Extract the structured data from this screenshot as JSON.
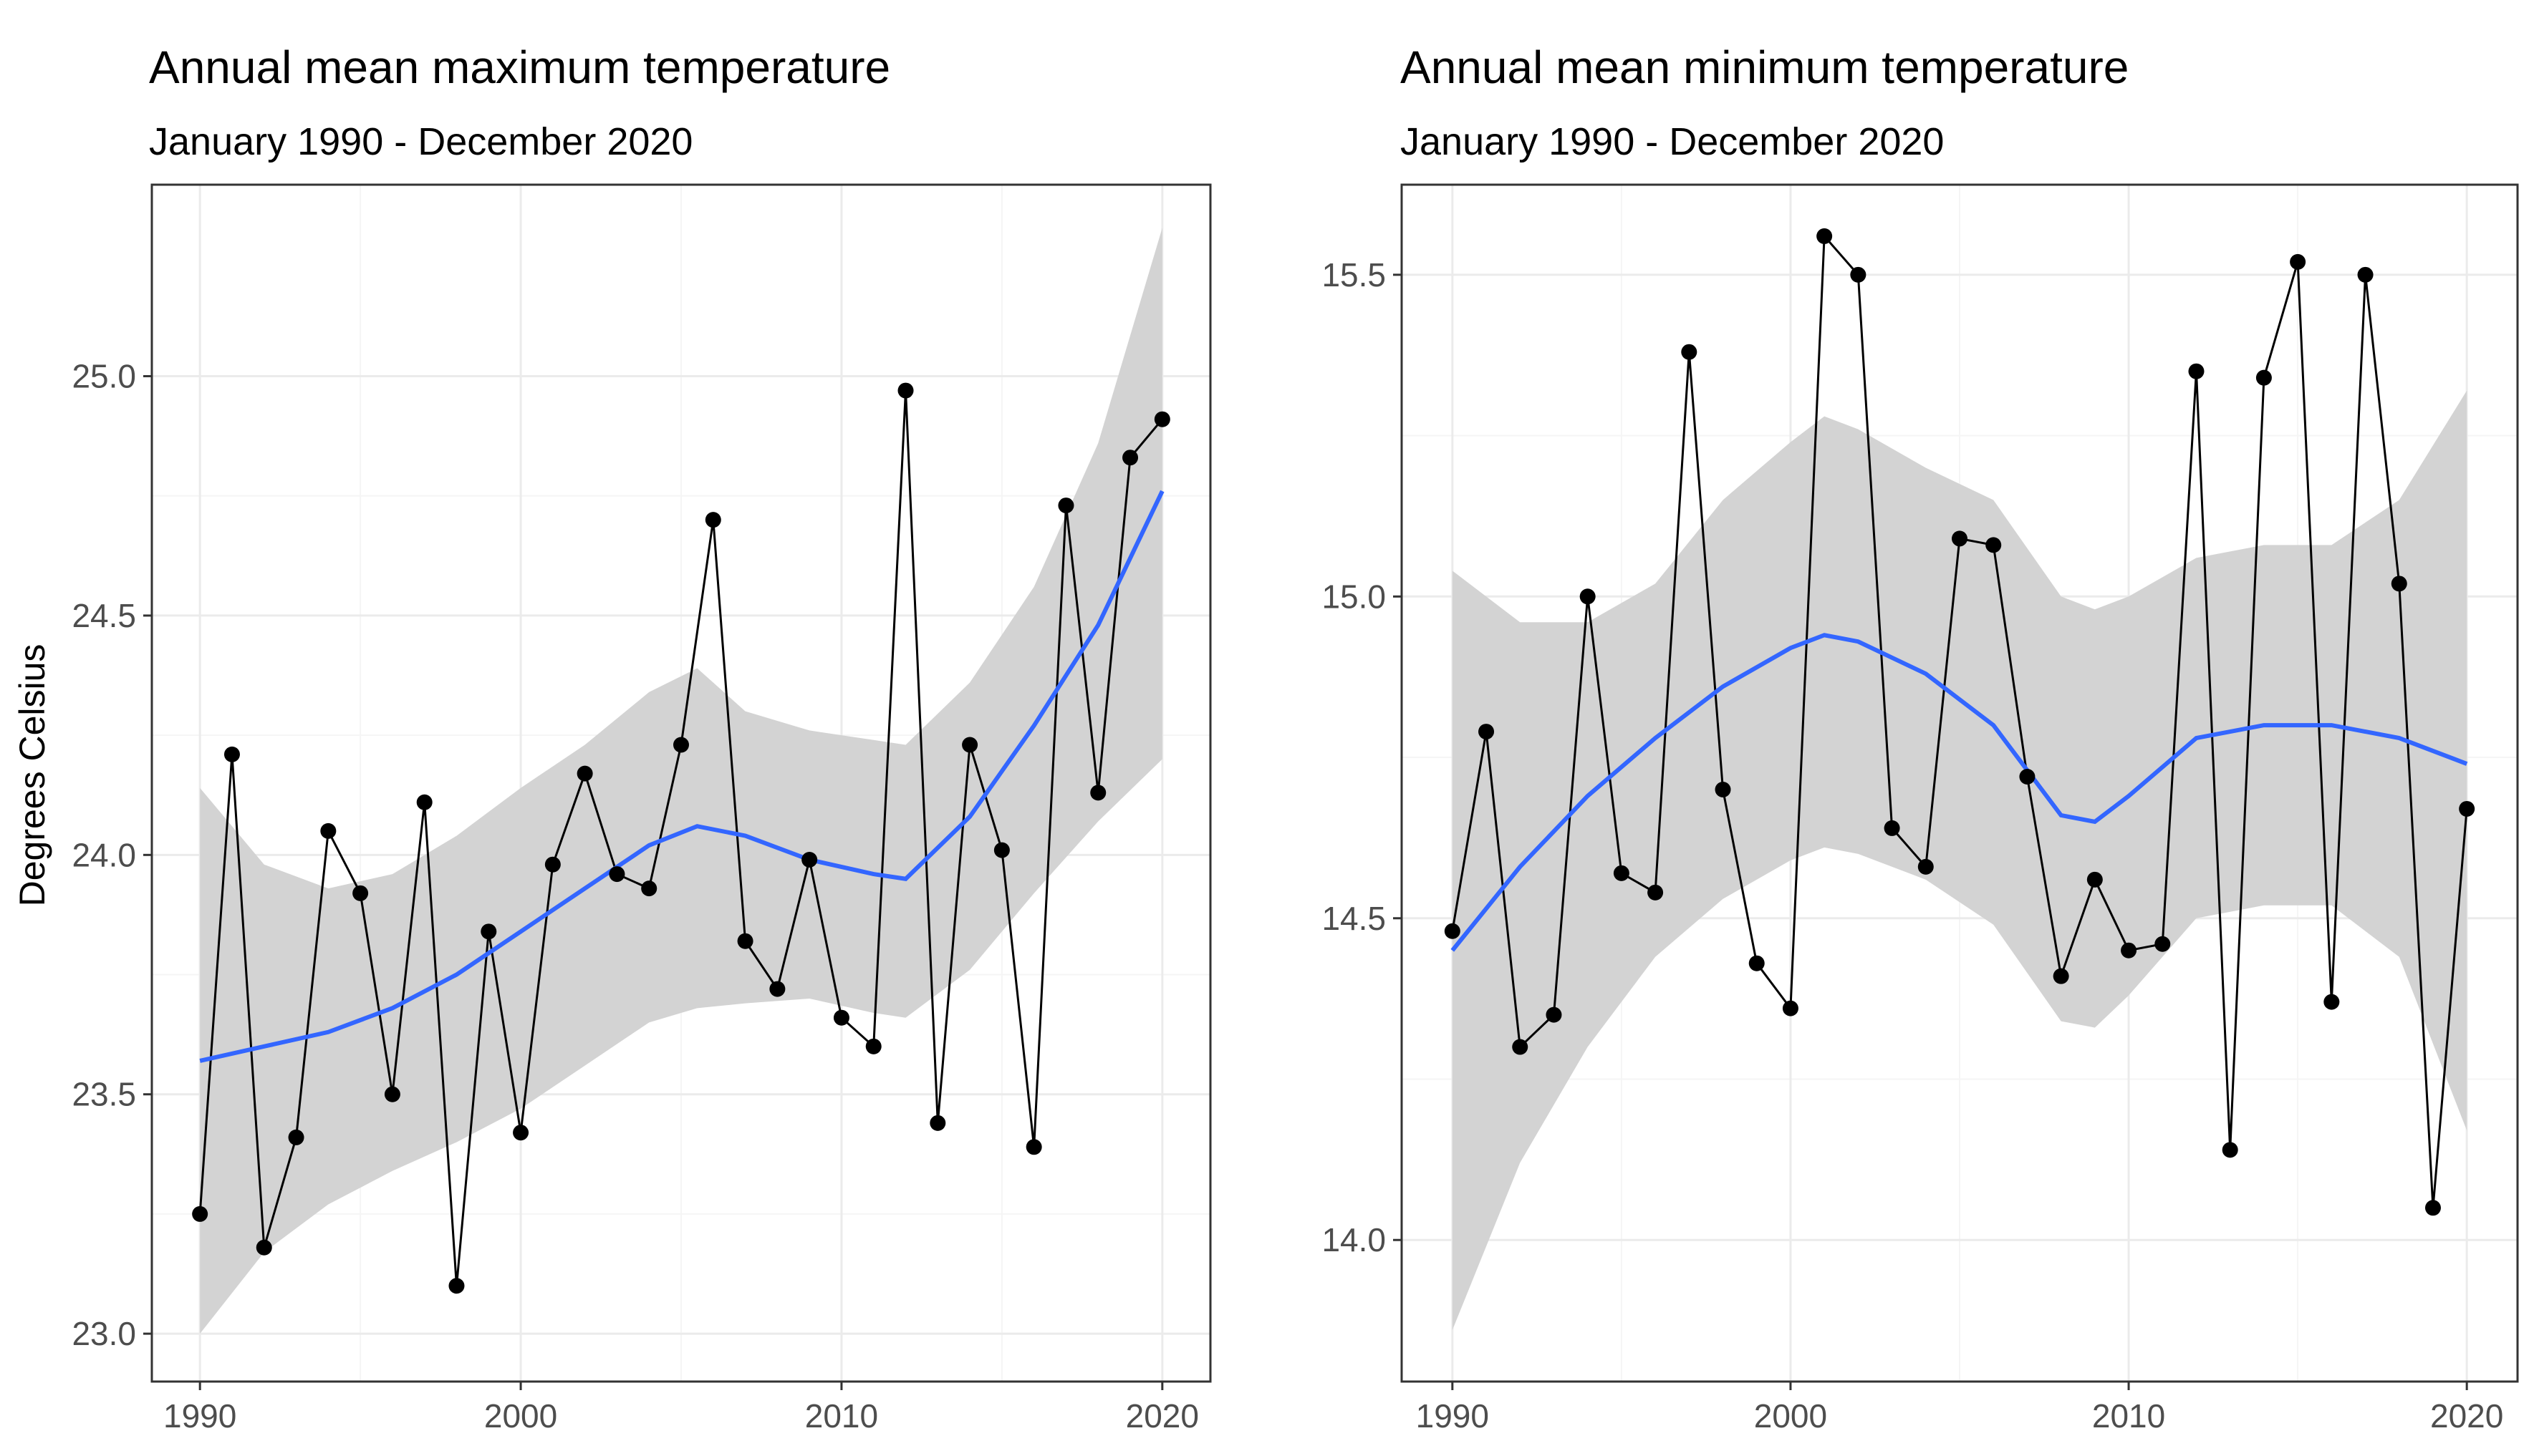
{
  "chart_data": [
    {
      "type": "line",
      "title": "Annual mean maximum temperature",
      "subtitle": "January 1990 - December 2020",
      "xlabel": "",
      "ylabel": "Degrees Celsius",
      "xlim": [
        1988.5,
        2021.5
      ],
      "ylim": [
        22.9,
        25.4
      ],
      "x_ticks": [
        1990,
        2000,
        2010,
        2020
      ],
      "x_tick_labels": [
        "1990",
        "2000",
        "2010",
        "2020"
      ],
      "y_ticks": [
        23.0,
        23.5,
        24.0,
        24.5,
        25.0
      ],
      "y_tick_labels": [
        "23.0",
        "23.5",
        "24.0",
        "24.5",
        "25.0"
      ],
      "grid": true,
      "x": [
        1990,
        1991,
        1992,
        1993,
        1994,
        1995,
        1996,
        1997,
        1998,
        1999,
        2000,
        2001,
        2002,
        2003,
        2004,
        2005,
        2006,
        2007,
        2008,
        2009,
        2010,
        2011,
        2012,
        2013,
        2014,
        2015,
        2016,
        2017,
        2018,
        2019,
        2020
      ],
      "series": [
        {
          "values": [
            23.25,
            24.21,
            23.18,
            23.41,
            24.05,
            23.92,
            23.5,
            24.11,
            23.1,
            23.84,
            23.42,
            23.98,
            24.17,
            23.96,
            23.93,
            24.23,
            24.7,
            23.82,
            23.72,
            23.99,
            23.66,
            23.6,
            24.97,
            23.44,
            24.23,
            24.01,
            23.39,
            24.73,
            24.13,
            24.83,
            24.91
          ]
        }
      ],
      "smooth": {
        "x": [
          1990,
          1992,
          1994,
          1996,
          1998,
          2000,
          2002,
          2004,
          2005.5,
          2007,
          2009,
          2011,
          2012,
          2014,
          2016,
          2018,
          2020
        ],
        "values": [
          23.57,
          23.6,
          23.63,
          23.68,
          23.75,
          23.84,
          23.93,
          24.02,
          24.06,
          24.04,
          23.99,
          23.96,
          23.95,
          24.08,
          24.27,
          24.48,
          24.76
        ],
        "lower": [
          23.0,
          23.17,
          23.27,
          23.34,
          23.4,
          23.47,
          23.56,
          23.65,
          23.68,
          23.69,
          23.7,
          23.67,
          23.66,
          23.76,
          23.92,
          24.07,
          24.2
        ],
        "upper": [
          24.14,
          23.98,
          23.93,
          23.96,
          24.04,
          24.14,
          24.23,
          24.34,
          24.39,
          24.3,
          24.26,
          24.24,
          24.23,
          24.36,
          24.56,
          24.86,
          25.31
        ]
      }
    },
    {
      "type": "line",
      "title": "Annual mean minimum temperature",
      "subtitle": "January 1990 - December 2020",
      "xlabel": "",
      "ylabel": "",
      "xlim": [
        1988.5,
        2021.5
      ],
      "ylim": [
        13.78,
        15.64
      ],
      "x_ticks": [
        1990,
        2000,
        2010,
        2020
      ],
      "x_tick_labels": [
        "1990",
        "2000",
        "2010",
        "2020"
      ],
      "y_ticks": [
        14.0,
        14.5,
        15.0,
        15.5
      ],
      "y_tick_labels": [
        "14.0",
        "14.5",
        "15.0",
        "15.5"
      ],
      "grid": true,
      "x": [
        1990,
        1991,
        1992,
        1993,
        1994,
        1995,
        1996,
        1997,
        1998,
        1999,
        2000,
        2001,
        2002,
        2003,
        2004,
        2005,
        2006,
        2007,
        2008,
        2009,
        2010,
        2011,
        2012,
        2013,
        2014,
        2015,
        2016,
        2017,
        2018,
        2019,
        2020
      ],
      "series": [
        {
          "values": [
            14.48,
            14.79,
            14.3,
            14.35,
            15.0,
            14.57,
            14.54,
            15.38,
            14.7,
            14.43,
            14.36,
            15.56,
            15.5,
            14.64,
            14.58,
            15.09,
            15.08,
            14.72,
            14.41,
            14.56,
            14.45,
            14.46,
            15.35,
            14.14,
            15.34,
            15.52,
            14.37,
            15.5,
            15.02,
            14.05,
            14.67
          ]
        }
      ],
      "smooth": {
        "x": [
          1990,
          1992,
          1994,
          1996,
          1998,
          2000,
          2001,
          2002,
          2004,
          2006,
          2008,
          2009,
          2010,
          2012,
          2014,
          2016,
          2018,
          2020
        ],
        "values": [
          14.45,
          14.58,
          14.69,
          14.78,
          14.86,
          14.92,
          14.94,
          14.93,
          14.88,
          14.8,
          14.66,
          14.65,
          14.69,
          14.78,
          14.8,
          14.8,
          14.78,
          14.74
        ],
        "lower": [
          13.86,
          14.12,
          14.3,
          14.44,
          14.53,
          14.59,
          14.61,
          14.6,
          14.56,
          14.49,
          14.34,
          14.33,
          14.38,
          14.5,
          14.52,
          14.52,
          14.44,
          14.17
        ],
        "upper": [
          15.04,
          14.96,
          14.96,
          15.02,
          15.15,
          15.24,
          15.28,
          15.26,
          15.2,
          15.15,
          15.0,
          14.98,
          15.0,
          15.06,
          15.08,
          15.08,
          15.15,
          15.32
        ]
      }
    }
  ]
}
